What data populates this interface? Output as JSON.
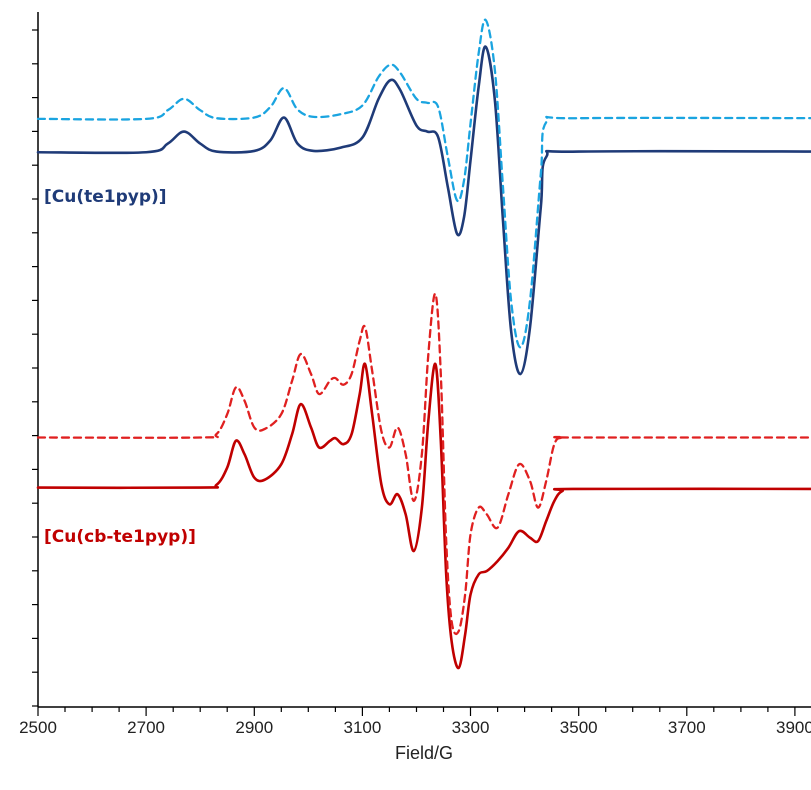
{
  "chart_data": {
    "type": "line",
    "title": "",
    "xlabel": "Field/G",
    "ylabel": "",
    "xlim": [
      2500,
      3980
    ],
    "ylim": [
      0,
      100
    ],
    "y_axis": "unlabeled arbitrary units; decorative ticks only",
    "grid": false,
    "x_ticks": [
      2500,
      2700,
      2900,
      3100,
      3300,
      3500,
      3700,
      3900
    ],
    "x_tick_labels": [
      "2500",
      "2700",
      "2900",
      "3100",
      "3300",
      "3500",
      "3700",
      "3900"
    ],
    "annotations": [
      {
        "id": "blue",
        "text": "[Cu(te1pyp)]",
        "color": "#1f3b78"
      },
      {
        "id": "red",
        "text": "[Cu(cb-te1pyp)]",
        "color": "#c00000"
      }
    ],
    "series": [
      {
        "color": "#1f3b78",
        "style": "solid",
        "width": 2.6,
        "x": [
          2500,
          2700,
          2740,
          2770,
          2800,
          2830,
          2900,
          2930,
          2955,
          2980,
          3010,
          3060,
          3100,
          3130,
          3152,
          3170,
          3200,
          3220,
          3240,
          3258,
          3275,
          3288,
          3300,
          3315,
          3328,
          3345,
          3360,
          3375,
          3392,
          3410,
          3430,
          3440,
          3500,
          3980
        ],
        "y": [
          80.2,
          80.2,
          81.5,
          83.3,
          81.5,
          80.3,
          80.4,
          82.0,
          85.4,
          81.5,
          80.4,
          80.9,
          82.4,
          88.2,
          91.0,
          89.5,
          84.2,
          83.3,
          82.5,
          75.0,
          68.0,
          70.5,
          79.0,
          90.0,
          96.0,
          88.0,
          70.0,
          53.5,
          47.0,
          54.0,
          72.0,
          79.5,
          80.3,
          80.3
        ]
      },
      {
        "color": "#1aa4e0",
        "style": "dashed",
        "width": 2.3,
        "x": [
          2500,
          2700,
          2740,
          2770,
          2800,
          2830,
          2900,
          2930,
          2955,
          2980,
          3010,
          3060,
          3100,
          3130,
          3152,
          3170,
          3200,
          3220,
          3240,
          3258,
          3275,
          3288,
          3300,
          3315,
          3328,
          3345,
          3360,
          3375,
          3392,
          3410,
          3430,
          3440,
          3500,
          3980
        ],
        "y": [
          85.2,
          85.2,
          86.5,
          88.2,
          86.5,
          85.3,
          85.4,
          87.0,
          89.8,
          86.6,
          85.5,
          85.9,
          87.2,
          91.5,
          93.3,
          92.1,
          88.2,
          87.6,
          87.0,
          79.5,
          73.0,
          76.0,
          84.5,
          95.0,
          100.0,
          92.5,
          75.0,
          58.0,
          51.0,
          58.0,
          77.0,
          84.7,
          85.3,
          85.3
        ]
      },
      {
        "color": "#c00000",
        "style": "solid",
        "width": 2.6,
        "x": [
          2500,
          2800,
          2830,
          2850,
          2866,
          2882,
          2900,
          2920,
          2950,
          2970,
          2986,
          3005,
          3020,
          3040,
          3050,
          3065,
          3080,
          3095,
          3105,
          3118,
          3135,
          3150,
          3165,
          3180,
          3195,
          3210,
          3222,
          3235,
          3245,
          3255,
          3265,
          3278,
          3290,
          3300,
          3315,
          3330,
          3350,
          3370,
          3390,
          3410,
          3425,
          3440,
          3455,
          3470,
          3500,
          3980
        ],
        "y": [
          30.0,
          30.0,
          30.4,
          33.0,
          37.0,
          35.0,
          31.5,
          31.2,
          33.5,
          38.0,
          42.5,
          39.0,
          36.0,
          37.0,
          37.4,
          36.5,
          38.0,
          44.0,
          48.5,
          41.0,
          30.5,
          27.5,
          29.0,
          26.0,
          20.5,
          27.0,
          40.0,
          48.5,
          37.0,
          17.0,
          7.0,
          3.0,
          8.0,
          14.0,
          17.0,
          17.5,
          19.0,
          21.0,
          23.5,
          22.5,
          22.0,
          25.0,
          28.0,
          29.5,
          29.8,
          29.8
        ]
      },
      {
        "color": "#e02020",
        "style": "dashed",
        "width": 2.3,
        "x": [
          2500,
          2800,
          2830,
          2850,
          2866,
          2882,
          2900,
          2920,
          2950,
          2970,
          2986,
          3005,
          3020,
          3040,
          3050,
          3065,
          3080,
          3095,
          3105,
          3118,
          3135,
          3150,
          3165,
          3180,
          3195,
          3210,
          3222,
          3235,
          3245,
          3255,
          3265,
          3278,
          3290,
          3300,
          3315,
          3330,
          3350,
          3370,
          3390,
          3410,
          3425,
          3440,
          3455,
          3470,
          3500,
          3980
        ],
        "y": [
          37.5,
          37.5,
          38.0,
          41.0,
          45.0,
          43.0,
          39.0,
          38.8,
          41.0,
          46.0,
          50.0,
          47.0,
          44.0,
          46.0,
          46.4,
          45.4,
          47.0,
          52.0,
          54.0,
          47.5,
          38.5,
          36.0,
          39.0,
          35.0,
          28.0,
          35.0,
          50.0,
          59.0,
          47.0,
          22.0,
          10.0,
          8.5,
          14.0,
          23.0,
          27.0,
          26.0,
          24.0,
          29.0,
          33.5,
          31.0,
          27.0,
          31.0,
          36.5,
          37.5,
          37.5,
          37.5
        ]
      }
    ]
  }
}
